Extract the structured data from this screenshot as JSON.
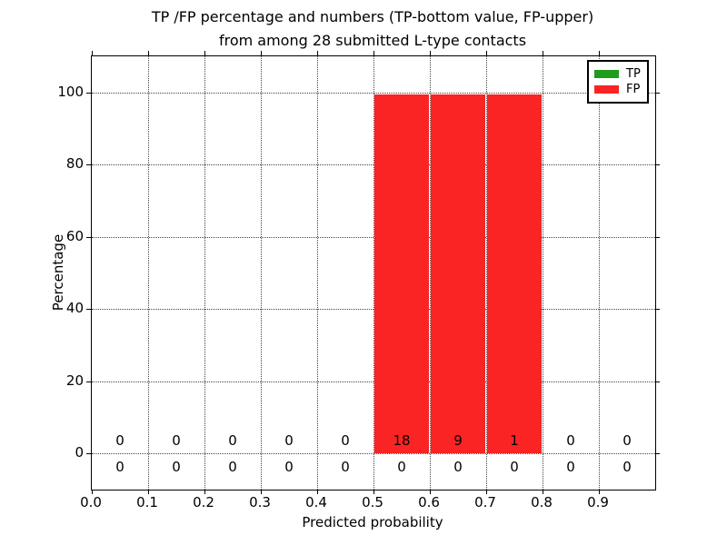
{
  "title": {
    "line1": "TP /FP percentage and numbers (TP-bottom value, FP-upper)",
    "line2": "from among 28 submitted L-type contacts"
  },
  "chart_data": {
    "type": "bar",
    "title": "TP /FP percentage and numbers (TP-bottom value, FP-upper)\nfrom among 28 submitted L-type contacts",
    "xlabel": "Predicted probability",
    "ylabel": "Percentage",
    "xlim": [
      0.0,
      1.0
    ],
    "ylim": [
      -10,
      110
    ],
    "grid": true,
    "xticks": [
      "0.0",
      "0.1",
      "0.2",
      "0.3",
      "0.4",
      "0.5",
      "0.6",
      "0.7",
      "0.8",
      "0.9"
    ],
    "yticks": [
      "0",
      "20",
      "40",
      "60",
      "80",
      "100"
    ],
    "ytick_values": [
      0,
      20,
      40,
      60,
      80,
      100
    ],
    "bin_edges": [
      0.0,
      0.1,
      0.2,
      0.3,
      0.4,
      0.5,
      0.6,
      0.7,
      0.8,
      0.9,
      1.0
    ],
    "series": [
      {
        "name": "TP",
        "color": "#1e9c1e",
        "values_pct": [
          0,
          0,
          0,
          0,
          0,
          0,
          0,
          0,
          0,
          0
        ],
        "counts": [
          0,
          0,
          0,
          0,
          0,
          0,
          0,
          0,
          0,
          0
        ]
      },
      {
        "name": "FP",
        "color": "#fb2424",
        "values_pct": [
          0,
          0,
          0,
          0,
          0,
          100,
          100,
          100,
          0,
          0
        ],
        "counts": [
          0,
          0,
          0,
          0,
          0,
          18,
          9,
          1,
          0,
          0
        ]
      }
    ],
    "annotations": {
      "upper_row_fp_counts": [
        "0",
        "0",
        "0",
        "0",
        "0",
        "18",
        "9",
        "1",
        "0",
        "0"
      ],
      "lower_row_tp_counts": [
        "0",
        "0",
        "0",
        "0",
        "0",
        "0",
        "0",
        "0",
        "0",
        "0"
      ]
    },
    "legend": {
      "position": "upper right",
      "items": [
        {
          "label": "TP",
          "color": "#1e9c1e"
        },
        {
          "label": "FP",
          "color": "#fb2424"
        }
      ]
    }
  }
}
